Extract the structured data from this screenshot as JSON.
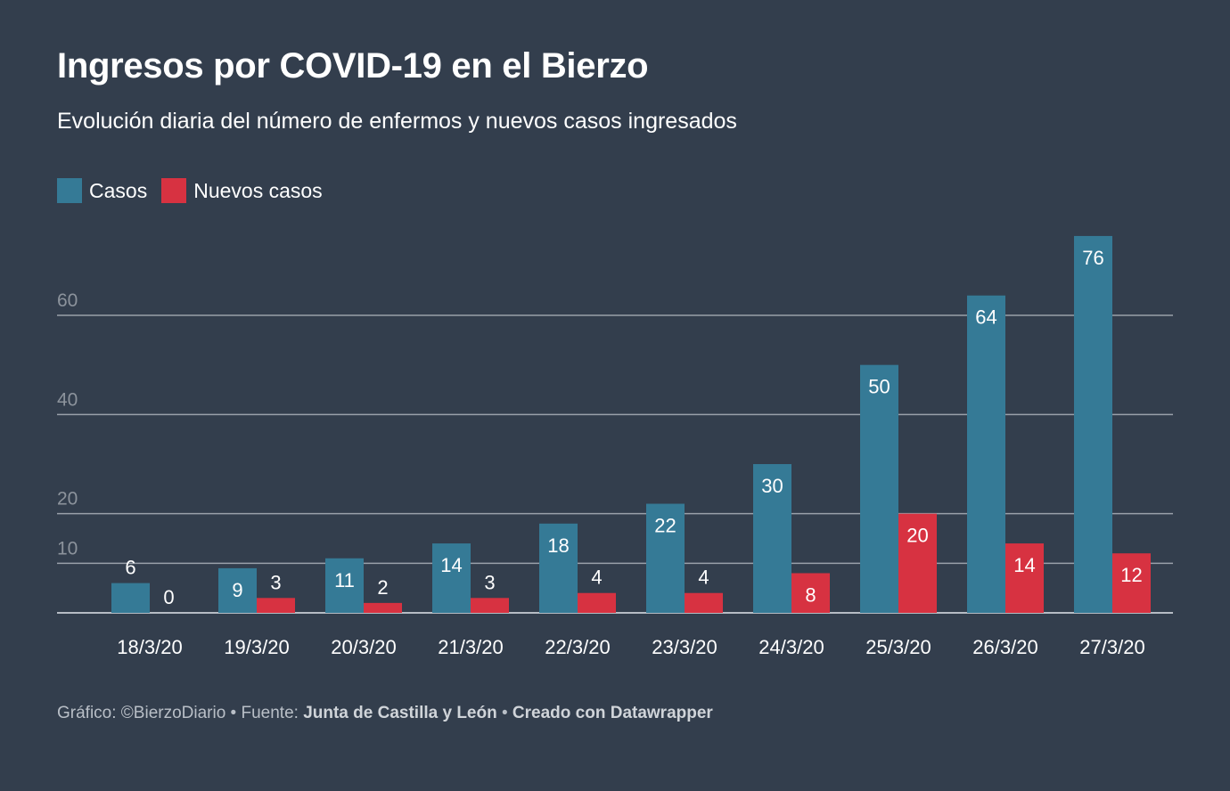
{
  "title": "Ingresos por COVID-19 en el Bierzo",
  "subtitle": "Evolución diaria del número de enfermos y nuevos casos ingresados",
  "footer": {
    "credit": "Gráfico: ©BierzoDiario",
    "sep1": " • Fuente: ",
    "source": "Junta de Castilla y León",
    "sep2": " • ",
    "tool": "Creado con Datawrapper"
  },
  "colors": {
    "background": "#333e4d",
    "casos": "#357a96",
    "nuevos": "#d73241",
    "grid": "#9aa1aa",
    "tick_label": "#8c939c"
  },
  "chart_data": {
    "type": "bar",
    "categories": [
      "18/3/20",
      "19/3/20",
      "20/3/20",
      "21/3/20",
      "22/3/20",
      "23/3/20",
      "24/3/20",
      "25/3/20",
      "26/3/20",
      "27/3/20"
    ],
    "series": [
      {
        "name": "Casos",
        "values": [
          6,
          9,
          11,
          14,
          18,
          22,
          30,
          50,
          64,
          76
        ]
      },
      {
        "name": "Nuevos casos",
        "values": [
          0,
          3,
          2,
          3,
          4,
          4,
          8,
          20,
          14,
          12
        ]
      }
    ],
    "y_ticks": [
      10,
      20,
      40,
      60
    ],
    "ylim": [
      0,
      76
    ],
    "grid": true,
    "legend": "top-left"
  }
}
